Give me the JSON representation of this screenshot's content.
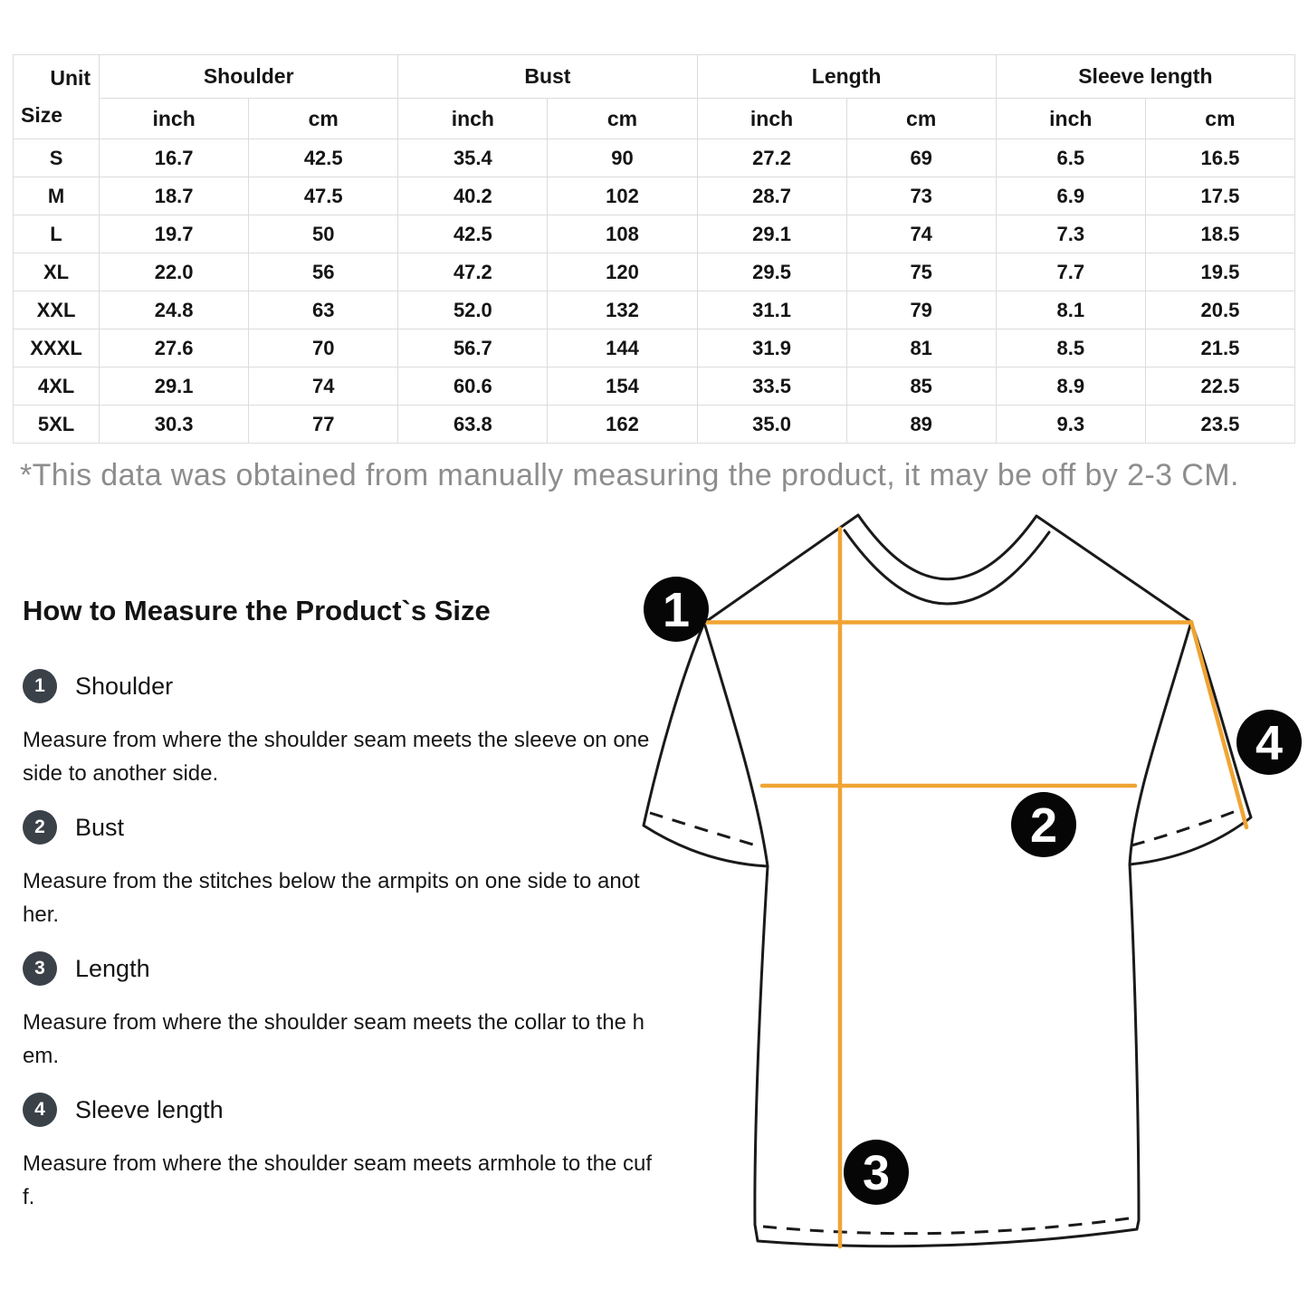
{
  "colors": {
    "accent-line": "#f0a433",
    "marker-bg": "#060606",
    "marker-fg": "#ffffff",
    "badge-bg": "#3a4149",
    "border": "#dcdcdc",
    "text-dark": "#1b1b1b",
    "text-gray": "#8d8d8d"
  },
  "table": {
    "corner": {
      "top": "Unit",
      "bottom": "Size"
    },
    "groups": [
      {
        "label": "Shoulder",
        "sub": [
          "inch",
          "cm"
        ]
      },
      {
        "label": "Bust",
        "sub": [
          "inch",
          "cm"
        ]
      },
      {
        "label": "Length",
        "sub": [
          "inch",
          "cm"
        ]
      },
      {
        "label": "Sleeve length",
        "sub": [
          "inch",
          "cm"
        ]
      }
    ],
    "rows": [
      {
        "size": "S",
        "values": [
          "16.7",
          "42.5",
          "35.4",
          "90",
          "27.2",
          "69",
          "6.5",
          "16.5"
        ]
      },
      {
        "size": "M",
        "values": [
          "18.7",
          "47.5",
          "40.2",
          "102",
          "28.7",
          "73",
          "6.9",
          "17.5"
        ]
      },
      {
        "size": "L",
        "values": [
          "19.7",
          "50",
          "42.5",
          "108",
          "29.1",
          "74",
          "7.3",
          "18.5"
        ]
      },
      {
        "size": "XL",
        "values": [
          "22.0",
          "56",
          "47.2",
          "120",
          "29.5",
          "75",
          "7.7",
          "19.5"
        ]
      },
      {
        "size": "XXL",
        "values": [
          "24.8",
          "63",
          "52.0",
          "132",
          "31.1",
          "79",
          "8.1",
          "20.5"
        ]
      },
      {
        "size": "XXXL",
        "values": [
          "27.6",
          "70",
          "56.7",
          "144",
          "31.9",
          "81",
          "8.5",
          "21.5"
        ]
      },
      {
        "size": "4XL",
        "values": [
          "29.1",
          "74",
          "60.6",
          "154",
          "33.5",
          "85",
          "8.9",
          "22.5"
        ]
      },
      {
        "size": "5XL",
        "values": [
          "30.3",
          "77",
          "63.8",
          "162",
          "35.0",
          "89",
          "9.3",
          "23.5"
        ]
      }
    ]
  },
  "disclaimer": "*This data was obtained from manually measuring the product, it may be off by 2-3 CM.",
  "guide": {
    "title": "How to Measure the Product`s Size",
    "steps": [
      {
        "num": "1",
        "label": "Shoulder",
        "desc": "Measure from where the shoulder seam meets the sleeve on one\nside to another side."
      },
      {
        "num": "2",
        "label": "Bust",
        "desc": "Measure from the stitches below the armpits on one side to anot\nher."
      },
      {
        "num": "3",
        "label": "Length",
        "desc": "Measure from where the shoulder seam meets the collar to the h\nem."
      },
      {
        "num": "4",
        "label": "Sleeve length",
        "desc": "Measure from where the shoulder seam meets armhole to the cuf\nf."
      }
    ]
  },
  "diagram": {
    "markers": [
      "1",
      "2",
      "3",
      "4"
    ]
  }
}
